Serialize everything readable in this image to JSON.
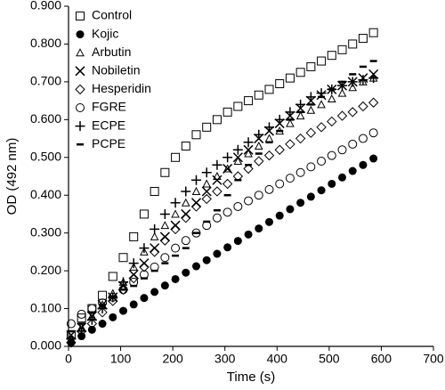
{
  "chart_data": {
    "type": "scatter",
    "xlabel": "Time (s)",
    "ylabel": "OD (492 nm)",
    "xlim": [
      0,
      700
    ],
    "xticks": [
      0,
      100,
      200,
      300,
      400,
      500,
      600,
      700
    ],
    "ylim": [
      0,
      0.9
    ],
    "yticks": [
      {
        "value": 0,
        "label": "0.000"
      },
      {
        "value": 0.1,
        "label": "0.100"
      },
      {
        "value": 0.2,
        "label": "0.200"
      },
      {
        "value": 0.3,
        "label": "0.300"
      },
      {
        "value": 0.4,
        "label": "0.400"
      },
      {
        "value": 0.5,
        "label": "0.500"
      },
      {
        "value": 0.6,
        "label": "0.600"
      },
      {
        "value": 0.7,
        "label": "0.700"
      },
      {
        "value": 0.8,
        "label": "0.800"
      },
      {
        "value": 0.9,
        "label": "0.900"
      }
    ],
    "legend": "upper-left",
    "x": [
      5,
      25,
      45,
      65,
      85,
      105,
      125,
      145,
      165,
      185,
      205,
      225,
      245,
      265,
      285,
      305,
      325,
      345,
      365,
      385,
      405,
      425,
      445,
      465,
      485,
      505,
      525,
      545,
      565,
      585
    ],
    "series": [
      {
        "name": "Control",
        "color": "#000000",
        "marker": "square",
        "values": [
          0.03,
          0.075,
          0.1,
          0.135,
          0.185,
          0.235,
          0.29,
          0.35,
          0.41,
          0.46,
          0.5,
          0.53,
          0.56,
          0.58,
          0.6,
          0.62,
          0.635,
          0.65,
          0.665,
          0.68,
          0.695,
          0.71,
          0.725,
          0.74,
          0.755,
          0.77,
          0.785,
          0.8,
          0.815,
          0.83
        ]
      },
      {
        "name": "Kojic",
        "color": "#000000",
        "marker": "dot",
        "values": [
          0.01,
          0.027,
          0.044,
          0.06,
          0.077,
          0.094,
          0.111,
          0.128,
          0.144,
          0.161,
          0.178,
          0.195,
          0.212,
          0.228,
          0.245,
          0.262,
          0.279,
          0.296,
          0.312,
          0.329,
          0.346,
          0.363,
          0.38,
          0.396,
          0.413,
          0.43,
          0.447,
          0.464,
          0.48,
          0.497
        ]
      },
      {
        "name": "Arbutin",
        "color": "#000000",
        "marker": "triangle",
        "values": [
          0.02,
          0.05,
          0.08,
          0.11,
          0.14,
          0.17,
          0.21,
          0.25,
          0.29,
          0.32,
          0.35,
          0.38,
          0.41,
          0.43,
          0.45,
          0.47,
          0.49,
          0.51,
          0.53,
          0.55,
          0.57,
          0.59,
          0.61,
          0.625,
          0.64,
          0.655,
          0.67,
          0.685,
          0.7,
          0.71
        ]
      },
      {
        "name": "Nobiletin",
        "color": "#000000",
        "marker": "cross",
        "values": [
          0.03,
          0.05,
          0.08,
          0.11,
          0.13,
          0.16,
          0.19,
          0.22,
          0.26,
          0.29,
          0.32,
          0.35,
          0.38,
          0.41,
          0.44,
          0.47,
          0.5,
          0.52,
          0.55,
          0.57,
          0.59,
          0.61,
          0.63,
          0.65,
          0.665,
          0.68,
          0.69,
          0.7,
          0.71,
          0.72
        ]
      },
      {
        "name": "Hesperidin",
        "color": "#000000",
        "marker": "diamond",
        "values": [
          0.01,
          0.04,
          0.06,
          0.09,
          0.12,
          0.15,
          0.18,
          0.21,
          0.25,
          0.28,
          0.31,
          0.34,
          0.37,
          0.39,
          0.41,
          0.43,
          0.45,
          0.47,
          0.49,
          0.505,
          0.52,
          0.535,
          0.55,
          0.565,
          0.58,
          0.595,
          0.61,
          0.62,
          0.635,
          0.645
        ]
      },
      {
        "name": "FGRE",
        "color": "#000000",
        "marker": "circle",
        "values": [
          0.06,
          0.085,
          0.1,
          0.115,
          0.13,
          0.15,
          0.17,
          0.19,
          0.21,
          0.235,
          0.26,
          0.28,
          0.3,
          0.32,
          0.34,
          0.355,
          0.37,
          0.385,
          0.4,
          0.415,
          0.43,
          0.445,
          0.46,
          0.475,
          0.49,
          0.505,
          0.52,
          0.535,
          0.55,
          0.565
        ]
      },
      {
        "name": "ECPE",
        "color": "#000000",
        "marker": "plus",
        "values": [
          0.02,
          0.04,
          0.07,
          0.1,
          0.13,
          0.17,
          0.22,
          0.26,
          0.31,
          0.35,
          0.38,
          0.41,
          0.44,
          0.46,
          0.48,
          0.5,
          0.52,
          0.54,
          0.56,
          0.58,
          0.6,
          0.62,
          0.64,
          0.66,
          0.67,
          0.68,
          0.69,
          0.7,
          0.705,
          0.71
        ]
      },
      {
        "name": "PCPE",
        "color": "#000000",
        "marker": "dash",
        "values": [
          0.04,
          0.06,
          0.09,
          0.11,
          0.13,
          0.15,
          0.16,
          0.18,
          0.2,
          0.22,
          0.24,
          0.26,
          0.3,
          0.33,
          0.36,
          0.4,
          0.44,
          0.48,
          0.51,
          0.54,
          0.57,
          0.6,
          0.62,
          0.64,
          0.66,
          0.68,
          0.7,
          0.72,
          0.74,
          0.755
        ]
      }
    ]
  }
}
